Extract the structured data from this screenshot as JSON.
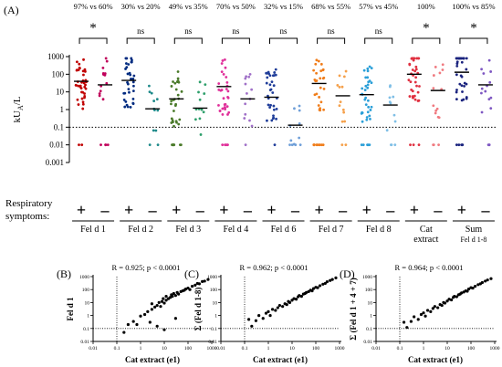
{
  "panel_labels": {
    "A": "(A)",
    "B": "(B)",
    "C": "(C)",
    "D": "(D)"
  },
  "chart_data": [
    {
      "type": "scatter",
      "panel": "(A)",
      "ylabel": "kUA/L",
      "ylabel_main": "kU",
      "ylabel_sub": "A",
      "ylabel_tail": "/L",
      "yscale": "log",
      "ylim": [
        0.001,
        1000
      ],
      "yticks": [
        0.001,
        0.01,
        0.1,
        1,
        10,
        100,
        1000
      ],
      "ytick_labels": [
        "0.001",
        "0.01",
        "0.1",
        "1",
        "10",
        "100",
        "1000"
      ],
      "threshold": 0.1,
      "row_label_line1": "Respiratory",
      "row_label_line2": "symptoms:",
      "plus_label": "+",
      "minus_label": "–",
      "groups": [
        {
          "name": "Fel d 1",
          "sub": "",
          "color_pos": "#C00000",
          "color_neg": "#C0005A",
          "percent": "97% vs 60%",
          "significance": "*",
          "median_pos": 40,
          "median_neg": 25,
          "n_pos": 40,
          "n_neg": 18
        },
        {
          "name": "Fel d 2",
          "sub": "",
          "color_pos": "#002B80",
          "color_neg": "#1F8A8A",
          "percent": "30% vs 20%",
          "significance": "ns",
          "median_pos": 45,
          "median_neg": 1.1,
          "n_pos": 34,
          "n_neg": 12
        },
        {
          "name": "Fel d 3",
          "sub": "",
          "color_pos": "#4A7A2A",
          "color_neg": "#2E9F6B",
          "percent": "49% vs 35%",
          "significance": "ns",
          "median_pos": 4,
          "median_neg": 1.2,
          "n_pos": 36,
          "n_neg": 12
        },
        {
          "name": "Fel d 4",
          "sub": "",
          "color_pos": "#E0309A",
          "color_neg": "#A070C8",
          "percent": "70% vs 50%",
          "significance": "ns",
          "median_pos": 20,
          "median_neg": 4,
          "n_pos": 36,
          "n_neg": 14
        },
        {
          "name": "Fel d 6",
          "sub": "",
          "color_pos": "#1F3D99",
          "color_neg": "#6F9FD8",
          "percent": "32% vs 15%",
          "significance": "ns",
          "median_pos": 5,
          "median_neg": 0.13,
          "n_pos": 34,
          "n_neg": 12
        },
        {
          "name": "Fel d 7",
          "sub": "",
          "color_pos": "#F07D1A",
          "color_neg": "#F5A04A",
          "percent": "68% vs 55%",
          "significance": "ns",
          "median_pos": 30,
          "median_neg": 6,
          "n_pos": 36,
          "n_neg": 14
        },
        {
          "name": "Fel d 8",
          "sub": "",
          "color_pos": "#2A9FD8",
          "color_neg": "#7FBFE6",
          "percent": "57% vs 45%",
          "significance": "ns",
          "median_pos": 7,
          "median_neg": 1.8,
          "n_pos": 38,
          "n_neg": 12
        },
        {
          "name": "Cat",
          "sub": "extract",
          "color_pos": "#E03040",
          "color_neg": "#F07A80",
          "percent": "100%",
          "significance": "*",
          "median_pos": 100,
          "median_neg": 12,
          "n_pos": 40,
          "n_neg": 16
        },
        {
          "name": "Sum",
          "sub": "Fel d 1-8",
          "color_pos": "#1A237E",
          "color_neg": "#7E57C2",
          "percent": "100% vs 85%",
          "significance": "*",
          "median_pos": 130,
          "median_neg": 25,
          "n_pos": 38,
          "n_neg": 16
        }
      ]
    },
    {
      "type": "scatter",
      "panel": "(B)",
      "xlabel": "Cat extract (e1)",
      "ylabel": "Fel d 1",
      "annotation": "R = 0.925; p < 0.0001",
      "xscale": "log",
      "yscale": "log",
      "xlim": [
        0.01,
        1000
      ],
      "ylim": [
        0.01,
        1000
      ],
      "ticks": [
        0.01,
        0.1,
        1,
        10,
        100,
        1000
      ],
      "tick_labels": [
        "0.01",
        "0.1",
        "1",
        "10",
        "100",
        "1000"
      ],
      "threshold": 0.1,
      "points": [
        [
          0.3,
          0.2
        ],
        [
          0.5,
          0.35
        ],
        [
          0.7,
          0.2
        ],
        [
          1,
          0.9
        ],
        [
          1.5,
          1.2
        ],
        [
          2,
          2
        ],
        [
          2.5,
          0.3
        ],
        [
          3,
          3
        ],
        [
          3,
          8
        ],
        [
          4,
          4.5
        ],
        [
          5,
          6
        ],
        [
          5,
          0.15
        ],
        [
          6,
          10
        ],
        [
          7,
          5
        ],
        [
          8,
          12
        ],
        [
          9,
          20
        ],
        [
          10,
          9
        ],
        [
          12,
          15
        ],
        [
          12,
          30
        ],
        [
          15,
          20
        ],
        [
          18,
          25
        ],
        [
          20,
          40
        ],
        [
          22,
          30
        ],
        [
          25,
          50
        ],
        [
          30,
          35
        ],
        [
          35,
          60
        ],
        [
          40,
          45
        ],
        [
          50,
          70
        ],
        [
          60,
          80
        ],
        [
          70,
          90
        ],
        [
          80,
          110
        ],
        [
          100,
          130
        ],
        [
          120,
          100
        ],
        [
          150,
          180
        ],
        [
          200,
          220
        ],
        [
          250,
          300
        ],
        [
          300,
          280
        ],
        [
          400,
          420
        ],
        [
          500,
          450
        ],
        [
          700,
          600
        ],
        [
          0.2,
          0.05
        ],
        [
          10,
          0.08
        ],
        [
          30,
          0.6
        ]
      ]
    },
    {
      "type": "scatter",
      "panel": "(C)",
      "xlabel": "Cat extract (e1)",
      "ylabel": "Σ (Fel d 1-8)",
      "annotation": "R = 0.962; p < 0.0001",
      "xscale": "log",
      "yscale": "log",
      "xlim": [
        0.01,
        1000
      ],
      "ylim": [
        0.01,
        1000
      ],
      "ticks": [
        0.01,
        0.1,
        1,
        10,
        100,
        1000
      ],
      "tick_labels": [
        "0.01",
        "0.1",
        "1",
        "10",
        "100",
        "1000"
      ],
      "threshold": 0.1,
      "points": [
        [
          0.15,
          0.5
        ],
        [
          0.2,
          0.15
        ],
        [
          0.3,
          0.4
        ],
        [
          0.4,
          1
        ],
        [
          0.6,
          0.6
        ],
        [
          0.8,
          1.5
        ],
        [
          1,
          2
        ],
        [
          1.2,
          1
        ],
        [
          1.5,
          3
        ],
        [
          2,
          2.5
        ],
        [
          2.5,
          4
        ],
        [
          3,
          6
        ],
        [
          4,
          5
        ],
        [
          5,
          8
        ],
        [
          6,
          7
        ],
        [
          7,
          12
        ],
        [
          8,
          10
        ],
        [
          10,
          15
        ],
        [
          12,
          20
        ],
        [
          15,
          18
        ],
        [
          18,
          28
        ],
        [
          20,
          35
        ],
        [
          25,
          30
        ],
        [
          30,
          45
        ],
        [
          35,
          50
        ],
        [
          40,
          60
        ],
        [
          50,
          70
        ],
        [
          60,
          90
        ],
        [
          70,
          80
        ],
        [
          80,
          120
        ],
        [
          100,
          150
        ],
        [
          120,
          140
        ],
        [
          150,
          200
        ],
        [
          200,
          260
        ],
        [
          250,
          300
        ],
        [
          300,
          400
        ],
        [
          400,
          500
        ],
        [
          500,
          600
        ],
        [
          700,
          800
        ]
      ]
    },
    {
      "type": "scatter",
      "panel": "(D)",
      "xlabel": "Cat extract (e1)",
      "ylabel": "Σ (Fel d 1 + 4 + 7)",
      "annotation": "R = 0.964; p < 0.0001",
      "xscale": "log",
      "yscale": "log",
      "xlim": [
        0.01,
        1000
      ],
      "ylim": [
        0.01,
        1000
      ],
      "ticks": [
        0.01,
        0.1,
        1,
        10,
        100,
        1000
      ],
      "tick_labels": [
        "0.01",
        "0.1",
        "1",
        "10",
        "100",
        "1000"
      ],
      "threshold": 0.1,
      "points": [
        [
          0.15,
          0.3
        ],
        [
          0.2,
          0.12
        ],
        [
          0.3,
          0.35
        ],
        [
          0.4,
          0.8
        ],
        [
          0.6,
          0.5
        ],
        [
          0.8,
          1.2
        ],
        [
          1,
          1.6
        ],
        [
          1.2,
          0.9
        ],
        [
          1.5,
          2.5
        ],
        [
          2,
          2
        ],
        [
          2.5,
          3.5
        ],
        [
          3,
          5
        ],
        [
          4,
          4
        ],
        [
          5,
          7
        ],
        [
          6,
          6
        ],
        [
          7,
          10
        ],
        [
          8,
          9
        ],
        [
          10,
          13
        ],
        [
          12,
          18
        ],
        [
          15,
          16
        ],
        [
          18,
          25
        ],
        [
          20,
          30
        ],
        [
          25,
          28
        ],
        [
          30,
          40
        ],
        [
          35,
          45
        ],
        [
          40,
          55
        ],
        [
          50,
          65
        ],
        [
          60,
          80
        ],
        [
          70,
          75
        ],
        [
          80,
          110
        ],
        [
          100,
          140
        ],
        [
          120,
          130
        ],
        [
          150,
          180
        ],
        [
          200,
          240
        ],
        [
          250,
          280
        ],
        [
          300,
          350
        ],
        [
          400,
          450
        ],
        [
          500,
          550
        ],
        [
          700,
          700
        ]
      ]
    }
  ]
}
